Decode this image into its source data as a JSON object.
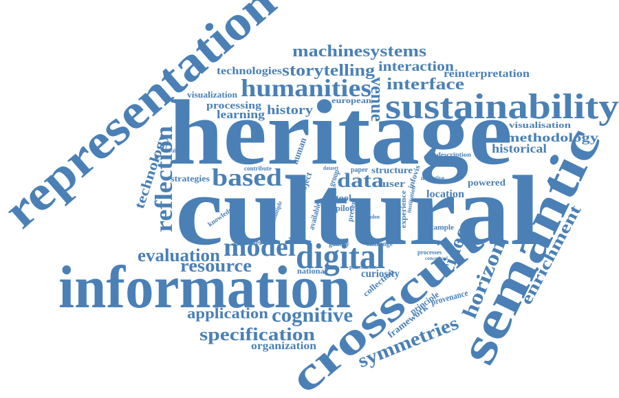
{
  "words": [
    "heritage",
    "cultural",
    "information",
    "representation",
    "semantic",
    "crosscult",
    "sustainability",
    "digital",
    "model",
    "humanities",
    "machinesystems",
    "storytelling",
    "interaction",
    "reinterpretation",
    "interface",
    "technologies",
    "visualization",
    "processing",
    "learning",
    "history",
    "european",
    "venue",
    "visualisation",
    "methodology",
    "historical",
    "description",
    "reflection",
    "technology",
    "strategies",
    "based",
    "data",
    "structure",
    "user",
    "narrative",
    "powered",
    "location",
    "example",
    "enrichment",
    "horizon",
    "cidoc",
    "evaluation",
    "resource",
    "knowledge",
    "national",
    "curiosity",
    "collection",
    "framework",
    "principle",
    "provenance",
    "symmetries",
    "application",
    "cognitive",
    "specification",
    "organization",
    "experience",
    "infovis",
    "tool",
    "pilot",
    "gallery",
    "challenge",
    "evidence",
    "processes",
    "conceptual",
    "presentation",
    "structured",
    "contribute",
    "evaluating",
    "human",
    "project",
    "group",
    "available",
    "london",
    "paper",
    "dataset",
    "multiple",
    "institution",
    "present"
  ]
}
